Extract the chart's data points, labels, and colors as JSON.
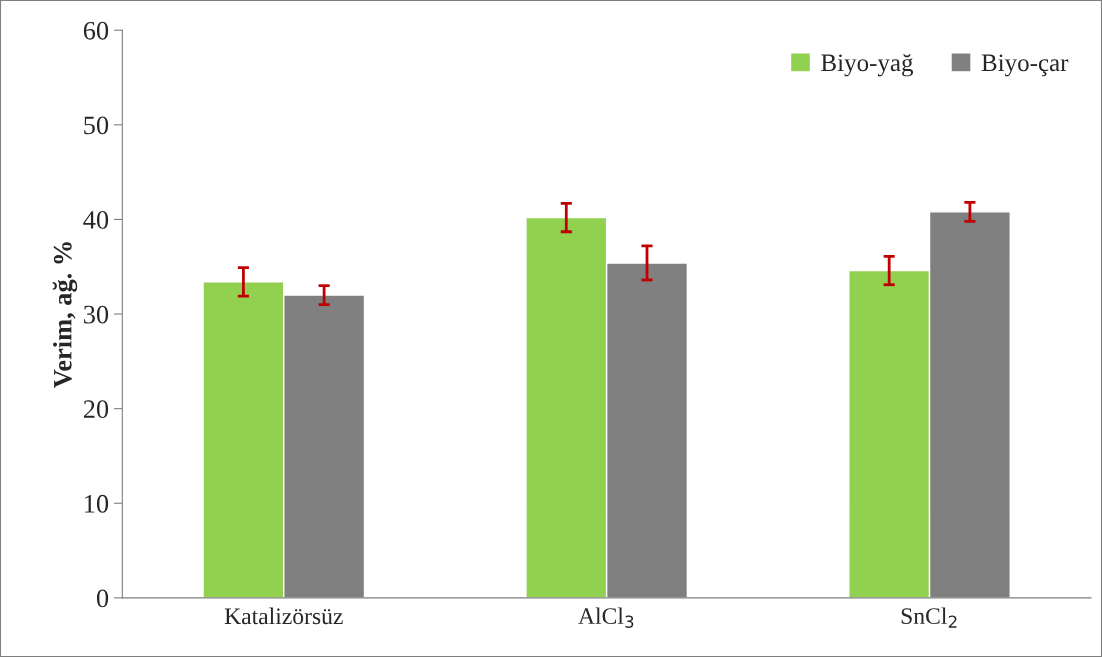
{
  "chart_data": {
    "type": "bar",
    "ylabel": "Verim, ağ. %",
    "categories": [
      "Katalizörsüz",
      "AlCl$_{3}$",
      "SnCl$_{2}$"
    ],
    "series": [
      {
        "name": "Biyo-yağ",
        "color": "#92d050",
        "values": [
          33.4,
          40.2,
          34.6
        ],
        "errors": [
          1.5,
          1.5,
          1.5
        ]
      },
      {
        "name": "Biyo-çar",
        "color": "#808080",
        "values": [
          32.0,
          35.4,
          40.8
        ],
        "errors": [
          1.0,
          1.8,
          1.0
        ]
      }
    ],
    "ylim": [
      0,
      60
    ],
    "yticks": [
      0,
      10,
      20,
      30,
      40,
      50,
      60
    ],
    "grid": false,
    "legend": "top right"
  }
}
